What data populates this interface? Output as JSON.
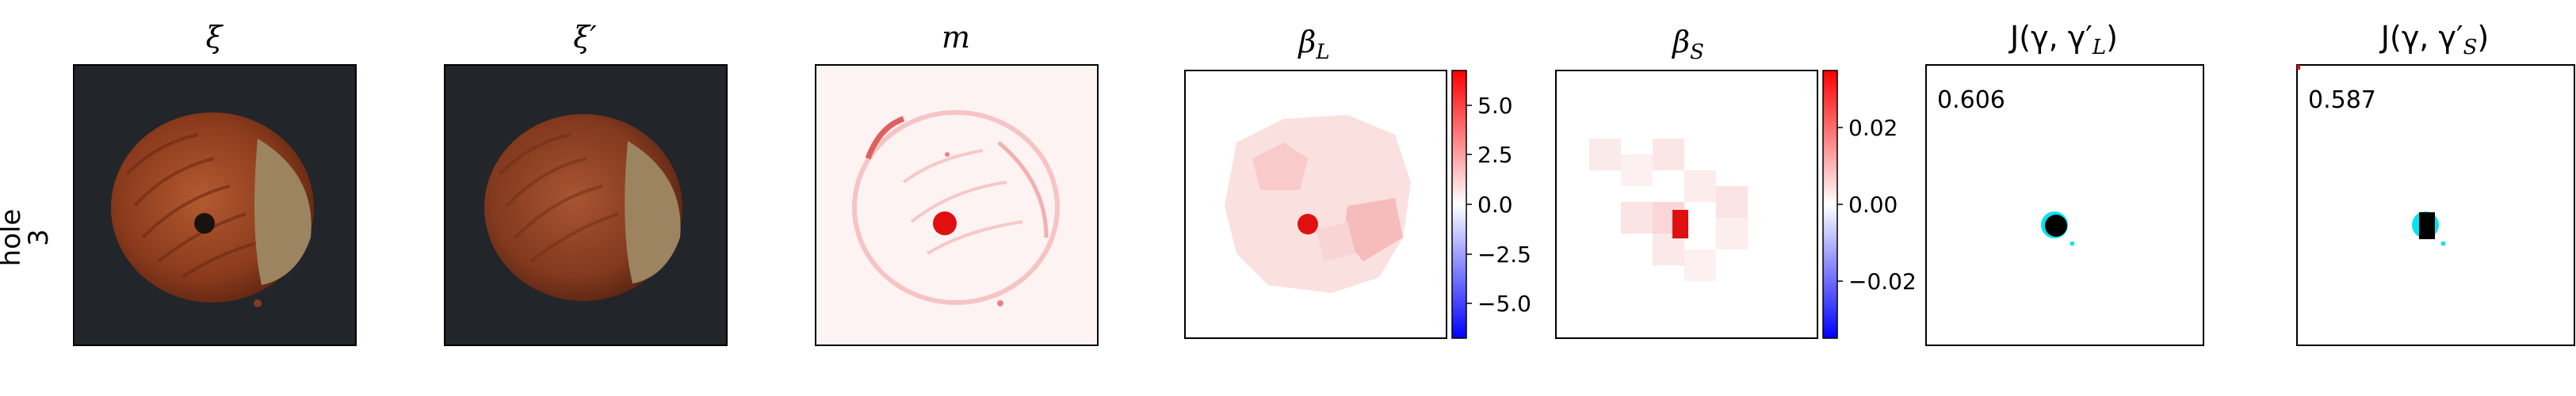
{
  "row_label": {
    "line1": "hole",
    "line2": "3"
  },
  "panels": [
    {
      "id": "xi",
      "title": "ξ"
    },
    {
      "id": "xi-prime",
      "title": "ξ′"
    },
    {
      "id": "m",
      "title": "m"
    },
    {
      "id": "beta-l",
      "title": "β",
      "title_sub": "L"
    },
    {
      "id": "beta-s",
      "title": "β",
      "title_sub": "S"
    },
    {
      "id": "j-l",
      "title": "J(γ, γ′",
      "title_sub": "L",
      "title_end": ")"
    },
    {
      "id": "j-s",
      "title": "J(γ, γ′",
      "title_sub": "S",
      "title_end": ")"
    }
  ],
  "colorbar_l": {
    "ticks": [
      "5.0",
      "2.5",
      "0.0",
      "−2.5",
      "−5.0"
    ]
  },
  "colorbar_s": {
    "ticks": [
      "0.02",
      "0.00",
      "−0.02"
    ]
  },
  "scores": {
    "j_l": "0.606",
    "j_s": "0.587"
  },
  "colors": {
    "background_dark": "#22252a",
    "hazelnut": "#8a3a1c",
    "hazelnut_light": "#b35a30",
    "hole": "#1a120e",
    "cap": "#9c8460",
    "heat_red": "#e01010",
    "heat_pink": "#f7c6c6",
    "cyan": "#00e5f0",
    "colorbar_red": "#ff0000",
    "colorbar_blue": "#0000ff"
  }
}
